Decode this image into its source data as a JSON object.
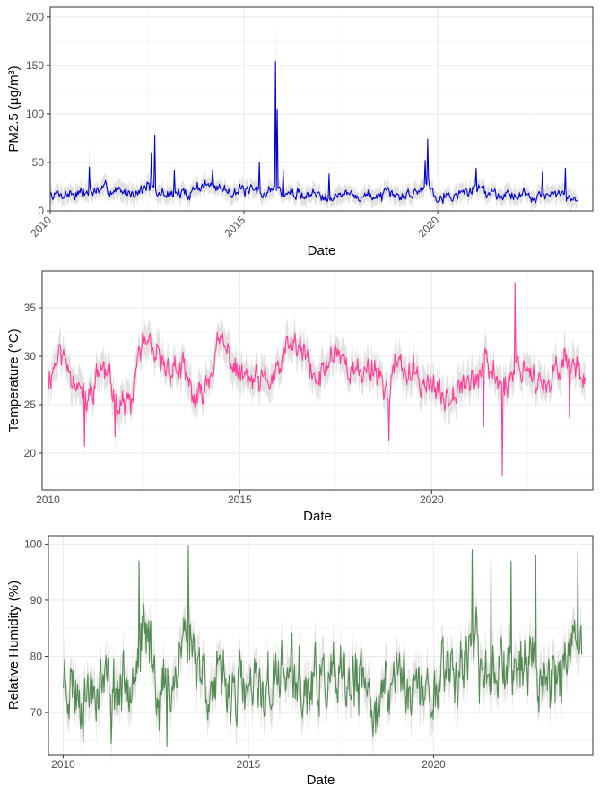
{
  "chart_data": [
    {
      "type": "line",
      "id": "pm25",
      "xlabel": "Date",
      "ylabel": "PM2.5 (µg/m³)",
      "xlim": [
        2010,
        2024
      ],
      "ylim": [
        0,
        210
      ],
      "xticks": [
        2010,
        2015,
        2020
      ],
      "xtick_labels": [
        "2010",
        "2015",
        "2020"
      ],
      "xtick_rotation": -45,
      "yticks": [
        0,
        50,
        100,
        150,
        200
      ],
      "ytick_labels": [
        "0",
        "50",
        "100",
        "150",
        "200"
      ],
      "grid": true,
      "band_color": "#e3e1df",
      "line_color": "#0000cc",
      "x_start": 2010.0,
      "x_end": 2023.6,
      "base_points": [
        [
          2010.0,
          17
        ],
        [
          2010.5,
          18
        ],
        [
          2011.0,
          19
        ],
        [
          2011.5,
          22
        ],
        [
          2012.0,
          19
        ],
        [
          2012.4,
          22
        ],
        [
          2012.5,
          28
        ],
        [
          2012.7,
          17
        ],
        [
          2013.0,
          18
        ],
        [
          2013.5,
          17
        ],
        [
          2013.8,
          25
        ],
        [
          2014.0,
          27
        ],
        [
          2014.5,
          22
        ],
        [
          2015.0,
          20
        ],
        [
          2015.5,
          18
        ],
        [
          2015.75,
          24
        ],
        [
          2015.85,
          22
        ],
        [
          2016.0,
          18
        ],
        [
          2016.5,
          17
        ],
        [
          2017.0,
          17
        ],
        [
          2017.5,
          17
        ],
        [
          2018.0,
          15
        ],
        [
          2018.5,
          16
        ],
        [
          2019.0,
          15
        ],
        [
          2019.5,
          20
        ],
        [
          2019.75,
          30
        ],
        [
          2019.9,
          20
        ],
        [
          2020.0,
          16
        ],
        [
          2020.5,
          16
        ],
        [
          2021.0,
          24
        ],
        [
          2021.5,
          18
        ],
        [
          2022.0,
          17
        ],
        [
          2022.5,
          16
        ],
        [
          2023.0,
          16
        ],
        [
          2023.6,
          14
        ]
      ],
      "noise": 4.5,
      "min_value": 5,
      "band_width": 8,
      "steps": 620,
      "seed": 7,
      "spikes": [
        {
          "x": 2012.7,
          "y": 78
        },
        {
          "x": 2012.62,
          "y": 60
        },
        {
          "x": 2015.82,
          "y": 154
        },
        {
          "x": 2015.86,
          "y": 104
        },
        {
          "x": 2019.75,
          "y": 74
        },
        {
          "x": 2019.68,
          "y": 52
        },
        {
          "x": 2011.0,
          "y": 45
        },
        {
          "x": 2013.2,
          "y": 42
        },
        {
          "x": 2014.2,
          "y": 42
        },
        {
          "x": 2015.4,
          "y": 50
        },
        {
          "x": 2016.0,
          "y": 42
        },
        {
          "x": 2017.2,
          "y": 38
        },
        {
          "x": 2021.0,
          "y": 44
        },
        {
          "x": 2023.3,
          "y": 44
        },
        {
          "x": 2022.7,
          "y": 40
        }
      ],
      "band_spikes": [
        {
          "x": 2015.82,
          "y": 205
        },
        {
          "x": 2012.7,
          "y": 96
        },
        {
          "x": 2011.0,
          "y": 70
        }
      ]
    },
    {
      "type": "line",
      "id": "temperature",
      "xlabel": "Date",
      "ylabel": "Temperature (°C)",
      "xlim": [
        2009.85,
        2024.2
      ],
      "ylim": [
        16.2,
        38.8
      ],
      "xticks": [
        2010,
        2015,
        2020
      ],
      "xtick_labels": [
        "2010",
        "2015",
        "2020"
      ],
      "xtick_rotation": 0,
      "yticks": [
        20,
        25,
        30,
        35
      ],
      "ytick_labels": [
        "20",
        "25",
        "30",
        "35"
      ],
      "grid": true,
      "band_color": "#e3e1df",
      "line_color": "#ff3e99",
      "x_start": 2010.0,
      "x_end": 2024.0,
      "base_points": [
        [
          2010.0,
          27.5
        ],
        [
          2010.3,
          30.5
        ],
        [
          2010.7,
          28
        ],
        [
          2011.0,
          25
        ],
        [
          2011.4,
          29
        ],
        [
          2011.8,
          25.5
        ],
        [
          2012.2,
          25
        ],
        [
          2012.35,
          30.5
        ],
        [
          2012.5,
          31
        ],
        [
          2013.0,
          29
        ],
        [
          2013.5,
          28.5
        ],
        [
          2013.9,
          25
        ],
        [
          2014.0,
          26
        ],
        [
          2014.5,
          31.5
        ],
        [
          2015.0,
          28
        ],
        [
          2015.5,
          27
        ],
        [
          2016.0,
          28
        ],
        [
          2016.3,
          31.5
        ],
        [
          2016.7,
          30
        ],
        [
          2017.0,
          27
        ],
        [
          2017.5,
          31
        ],
        [
          2018.0,
          28
        ],
        [
          2018.5,
          29
        ],
        [
          2018.9,
          26
        ],
        [
          2019.0,
          29
        ],
        [
          2019.5,
          28
        ],
        [
          2020.0,
          27
        ],
        [
          2020.3,
          25.5
        ],
        [
          2020.8,
          28
        ],
        [
          2021.0,
          27
        ],
        [
          2021.4,
          29
        ],
        [
          2021.9,
          27
        ],
        [
          2022.2,
          29
        ],
        [
          2022.5,
          29
        ],
        [
          2023.0,
          26
        ],
        [
          2023.4,
          30
        ],
        [
          2023.7,
          29
        ],
        [
          2024.0,
          28
        ]
      ],
      "noise": 1.1,
      "min_value": 17,
      "band_width": 1.5,
      "steps": 720,
      "seed": 11,
      "spikes": [
        {
          "x": 2010.95,
          "y": 20.7
        },
        {
          "x": 2011.75,
          "y": 21.7
        },
        {
          "x": 2018.88,
          "y": 21.3
        },
        {
          "x": 2021.85,
          "y": 17.7
        },
        {
          "x": 2022.18,
          "y": 37.6
        },
        {
          "x": 2021.35,
          "y": 22.8
        },
        {
          "x": 2023.6,
          "y": 23.7
        }
      ],
      "band_spikes": [
        {
          "x": 2022.18,
          "y": 38.3
        },
        {
          "x": 2021.85,
          "y": 16.9
        },
        {
          "x": 2018.88,
          "y": 19.3
        }
      ]
    },
    {
      "type": "line",
      "id": "humidity",
      "xlabel": "Date",
      "ylabel": "Relative Humidity (%)",
      "xlim": [
        2009.6,
        2024.3
      ],
      "ylim": [
        62.5,
        101.5
      ],
      "xticks": [
        2010,
        2015,
        2020
      ],
      "xtick_labels": [
        "2010",
        "2015",
        "2020"
      ],
      "xtick_rotation": 0,
      "yticks": [
        70,
        80,
        90,
        100
      ],
      "ytick_labels": [
        "70",
        "80",
        "90",
        "100"
      ],
      "grid": true,
      "band_color": "#e3e1df",
      "line_color": "#548b54",
      "x_start": 2010.0,
      "x_end": 2024.0,
      "base_points": [
        [
          2010.0,
          77
        ],
        [
          2010.5,
          73
        ],
        [
          2011.0,
          76
        ],
        [
          2011.5,
          74
        ],
        [
          2012.0,
          80
        ],
        [
          2012.3,
          84
        ],
        [
          2012.6,
          73
        ],
        [
          2013.0,
          76
        ],
        [
          2013.3,
          85
        ],
        [
          2013.7,
          79
        ],
        [
          2014.0,
          74
        ],
        [
          2014.5,
          75
        ],
        [
          2015.0,
          73
        ],
        [
          2015.5,
          74
        ],
        [
          2016.0,
          78
        ],
        [
          2016.5,
          73
        ],
        [
          2017.0,
          76
        ],
        [
          2017.5,
          74
        ],
        [
          2018.0,
          75
        ],
        [
          2018.4,
          72
        ],
        [
          2018.8,
          73
        ],
        [
          2019.0,
          78
        ],
        [
          2019.5,
          74
        ],
        [
          2020.0,
          73
        ],
        [
          2020.3,
          80
        ],
        [
          2020.6,
          76
        ],
        [
          2021.0,
          82
        ],
        [
          2021.4,
          76
        ],
        [
          2021.8,
          80
        ],
        [
          2022.2,
          78
        ],
        [
          2022.6,
          79
        ],
        [
          2023.0,
          76
        ],
        [
          2023.4,
          78
        ],
        [
          2024.0,
          80
        ]
      ],
      "noise": 4.2,
      "min_value": 64,
      "max_value": 99.5,
      "band_width": 3.2,
      "steps": 800,
      "seed": 23,
      "spikes": [
        {
          "x": 2013.38,
          "y": 99.8
        },
        {
          "x": 2021.05,
          "y": 99
        },
        {
          "x": 2022.75,
          "y": 98
        },
        {
          "x": 2023.9,
          "y": 98.8
        },
        {
          "x": 2012.05,
          "y": 97
        },
        {
          "x": 2022.1,
          "y": 97
        },
        {
          "x": 2021.55,
          "y": 97.5
        },
        {
          "x": 2012.8,
          "y": 64
        },
        {
          "x": 2011.3,
          "y": 64.5
        }
      ],
      "band_spikes": [
        {
          "x": 2013.38,
          "y": 101
        },
        {
          "x": 2021.05,
          "y": 100
        }
      ]
    }
  ]
}
